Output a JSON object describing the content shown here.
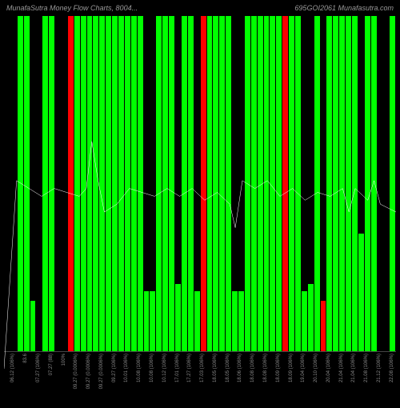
{
  "title_left": "MunafaSutra Money Flow Charts, 8004...",
  "title_right": "695GOI2061 Munafasutra.com",
  "background_color": "#000000",
  "text_color": "#888888",
  "colors": {
    "green": "#00ff00",
    "red": "#ff0000",
    "white": "#ffffff"
  },
  "chart": {
    "type": "bar_with_line",
    "ylim": [
      0,
      100
    ],
    "bars": [
      {
        "h1": 0,
        "c1": "#00ff00",
        "h2": 0,
        "c2": "#00ff00"
      },
      {
        "h1": 100,
        "c1": "#00ff00",
        "h2": 100,
        "c2": "#00ff00"
      },
      {
        "h1": 15,
        "c1": "#00ff00",
        "h2": 0,
        "c2": "#00ff00"
      },
      {
        "h1": 100,
        "c1": "#00ff00",
        "h2": 100,
        "c2": "#00ff00"
      },
      {
        "h1": 0,
        "c1": "#00ff00",
        "h2": 0,
        "c2": "#00ff00"
      },
      {
        "h1": 100,
        "c1": "#ff0000",
        "h2": 100,
        "c2": "#00ff00"
      },
      {
        "h1": 100,
        "c1": "#00ff00",
        "h2": 100,
        "c2": "#00ff00"
      },
      {
        "h1": 100,
        "c1": "#00ff00",
        "h2": 100,
        "c2": "#00ff00"
      },
      {
        "h1": 100,
        "c1": "#00ff00",
        "h2": 100,
        "c2": "#00ff00"
      },
      {
        "h1": 100,
        "c1": "#00ff00",
        "h2": 100,
        "c2": "#00ff00"
      },
      {
        "h1": 100,
        "c1": "#00ff00",
        "h2": 100,
        "c2": "#00ff00"
      },
      {
        "h1": 18,
        "c1": "#00ff00",
        "h2": 18,
        "c2": "#00ff00"
      },
      {
        "h1": 100,
        "c1": "#00ff00",
        "h2": 100,
        "c2": "#00ff00"
      },
      {
        "h1": 100,
        "c1": "#00ff00",
        "h2": 20,
        "c2": "#00ff00"
      },
      {
        "h1": 100,
        "c1": "#00ff00",
        "h2": 100,
        "c2": "#00ff00"
      },
      {
        "h1": 18,
        "c1": "#00ff00",
        "h2": 100,
        "c2": "#ff0000"
      },
      {
        "h1": 100,
        "c1": "#00ff00",
        "h2": 100,
        "c2": "#00ff00"
      },
      {
        "h1": 100,
        "c1": "#00ff00",
        "h2": 100,
        "c2": "#00ff00"
      },
      {
        "h1": 18,
        "c1": "#00ff00",
        "h2": 18,
        "c2": "#00ff00"
      },
      {
        "h1": 100,
        "c1": "#00ff00",
        "h2": 100,
        "c2": "#00ff00"
      },
      {
        "h1": 100,
        "c1": "#00ff00",
        "h2": 100,
        "c2": "#00ff00"
      },
      {
        "h1": 100,
        "c1": "#00ff00",
        "h2": 100,
        "c2": "#00ff00"
      },
      {
        "h1": 100,
        "c1": "#ff0000",
        "h2": 100,
        "c2": "#00ff00"
      },
      {
        "h1": 100,
        "c1": "#00ff00",
        "h2": 18,
        "c2": "#00ff00"
      },
      {
        "h1": 20,
        "c1": "#00ff00",
        "h2": 100,
        "c2": "#00ff00"
      },
      {
        "h1": 15,
        "c1": "#ff0000",
        "h2": 100,
        "c2": "#00ff00"
      },
      {
        "h1": 100,
        "c1": "#00ff00",
        "h2": 100,
        "c2": "#00ff00"
      },
      {
        "h1": 100,
        "c1": "#00ff00",
        "h2": 100,
        "c2": "#00ff00"
      },
      {
        "h1": 35,
        "c1": "#00ff00",
        "h2": 100,
        "c2": "#00ff00"
      },
      {
        "h1": 100,
        "c1": "#00ff00",
        "h2": 0,
        "c2": "#00ff00"
      },
      {
        "h1": 0,
        "c1": "#00ff00",
        "h2": 100,
        "c2": "#00ff00"
      }
    ],
    "line": [
      {
        "x": 0.0,
        "y": 10
      },
      {
        "x": 3.2,
        "y": 58
      },
      {
        "x": 6.4,
        "y": 56
      },
      {
        "x": 9.6,
        "y": 54
      },
      {
        "x": 12.8,
        "y": 56
      },
      {
        "x": 16.0,
        "y": 55
      },
      {
        "x": 19.2,
        "y": 54
      },
      {
        "x": 21.0,
        "y": 56
      },
      {
        "x": 22.4,
        "y": 68
      },
      {
        "x": 24.0,
        "y": 58
      },
      {
        "x": 25.6,
        "y": 50
      },
      {
        "x": 28.8,
        "y": 52
      },
      {
        "x": 32.0,
        "y": 56
      },
      {
        "x": 35.2,
        "y": 55
      },
      {
        "x": 38.4,
        "y": 54
      },
      {
        "x": 41.6,
        "y": 56
      },
      {
        "x": 44.8,
        "y": 54
      },
      {
        "x": 48.0,
        "y": 56
      },
      {
        "x": 51.2,
        "y": 53
      },
      {
        "x": 54.4,
        "y": 55
      },
      {
        "x": 57.6,
        "y": 52
      },
      {
        "x": 59.0,
        "y": 46
      },
      {
        "x": 60.8,
        "y": 58
      },
      {
        "x": 64.0,
        "y": 56
      },
      {
        "x": 67.2,
        "y": 58
      },
      {
        "x": 70.4,
        "y": 54
      },
      {
        "x": 73.6,
        "y": 56
      },
      {
        "x": 76.8,
        "y": 53
      },
      {
        "x": 80.0,
        "y": 55
      },
      {
        "x": 83.2,
        "y": 54
      },
      {
        "x": 86.4,
        "y": 56
      },
      {
        "x": 88.0,
        "y": 50
      },
      {
        "x": 89.6,
        "y": 56
      },
      {
        "x": 92.8,
        "y": 53
      },
      {
        "x": 94.4,
        "y": 58
      },
      {
        "x": 96.0,
        "y": 52
      },
      {
        "x": 100.0,
        "y": 50
      }
    ],
    "x_labels": [
      "06.12 (106%)",
      "83.6",
      "07.27 (106%)",
      "07.27 (88)",
      "100%",
      "09.27 (0.0006%)",
      "09.27 (0.0006%)",
      "09.27 (0.0006%)",
      "09.27 (106%)",
      "10.01 (106%)",
      "10.08 (106%)",
      "10.08 (106%)",
      "10.12 (106%)",
      "17.01 (106%)",
      "17.27 (106%)",
      "17.03 (106%)",
      "18.05 (106%)",
      "18.05 (106%)",
      "18.06 (106%)",
      "18.08 (106%)",
      "18.08 (106%)",
      "18.09 (106%)",
      "18.09 (106%)",
      "19.04 (106%)",
      "20.10 (106%)",
      "20.04 (106%)",
      "21.04 (106%)",
      "21.04 (106%)",
      "21.08 (106%)",
      "21.12 (106%)",
      "22.08 (106%)"
    ]
  }
}
